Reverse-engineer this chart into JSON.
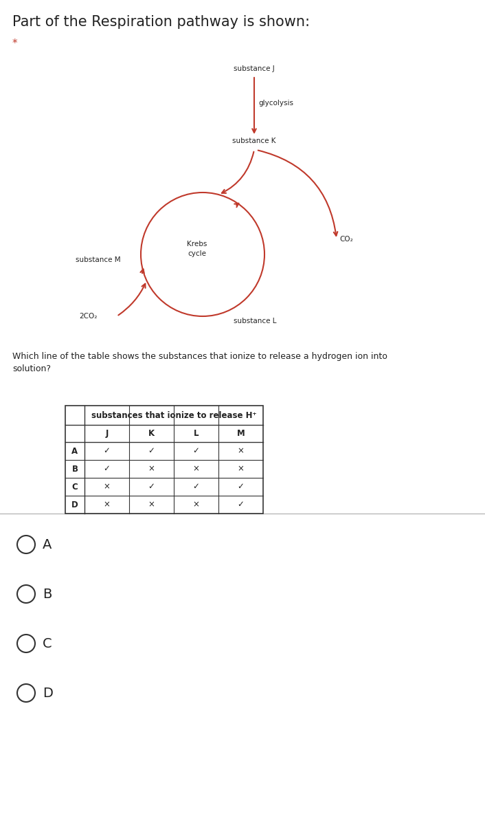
{
  "title": "Part of the Respiration pathway is shown:",
  "title_fontsize": 15,
  "star_color": "#c0392b",
  "diagram_color": "#c0392b",
  "bg_color": "#ffffff",
  "substance_j": "substance J",
  "substance_k": "substance K",
  "substance_l": "substance L",
  "substance_m": "substance M",
  "glycolysis_label": "glycolysis",
  "krebs_label": "Krebs\ncycle",
  "co2_label": "CO₂",
  "co2_bottom_label": "2CO₂",
  "question_text": "Which line of the table shows the substances that ionize to release a hydrogen ion into\nsolution?",
  "table_header": "substances that ionize to release H⁺",
  "table_cols": [
    "J",
    "K",
    "L",
    "M"
  ],
  "table_rows": [
    "A",
    "B",
    "C",
    "D"
  ],
  "table_data": [
    [
      "✓",
      "✓",
      "✓",
      "×"
    ],
    [
      "✓",
      "×",
      "×",
      "×"
    ],
    [
      "×",
      "✓",
      "✓",
      "✓"
    ],
    [
      "×",
      "×",
      "×",
      "✓"
    ]
  ],
  "options": [
    "A",
    "B",
    "C",
    "D"
  ],
  "text_color": "#222222",
  "table_header_fontsize": 8.5,
  "table_cell_fontsize": 8.5,
  "option_fontsize": 14
}
